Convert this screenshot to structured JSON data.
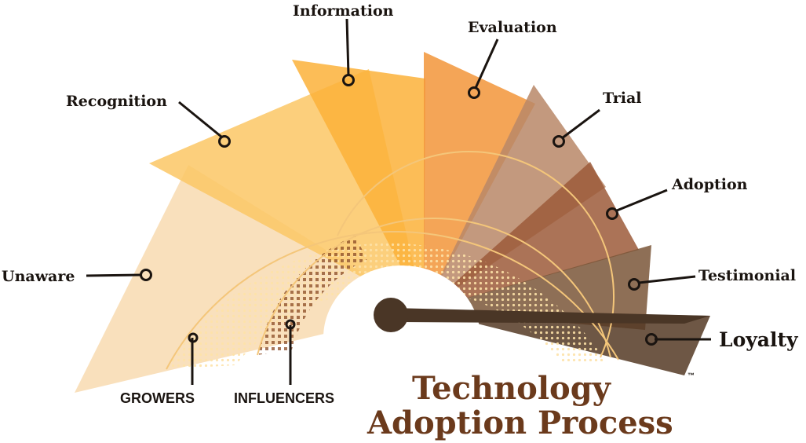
{
  "title": {
    "line1": "Technology",
    "line2": "Adoption Process",
    "trademark": "™",
    "color": "#6b3a1c"
  },
  "stages": [
    {
      "label": "Unaware",
      "color": "#f8dbb0"
    },
    {
      "label": "Recognition",
      "color": "#fbc765"
    },
    {
      "label": "Information",
      "color": "#fbb23a"
    },
    {
      "label": "Evaluation",
      "color": "#f2953a"
    },
    {
      "label": "Trial",
      "color": "#b98767"
    },
    {
      "label": "Adoption",
      "color": "#9c5a3a"
    },
    {
      "label": "Testimonial",
      "color": "#7a5638"
    },
    {
      "label": "Loyalty",
      "color": "#553a24"
    }
  ],
  "rings": [
    {
      "label": "GROWERS",
      "color": "#f6a830"
    },
    {
      "label": "INFLUENCERS",
      "color": "#b86a3c"
    }
  ],
  "colors": {
    "text": "#1a1410",
    "needle": "#4a3626",
    "arc_line": "#f4c67a"
  }
}
